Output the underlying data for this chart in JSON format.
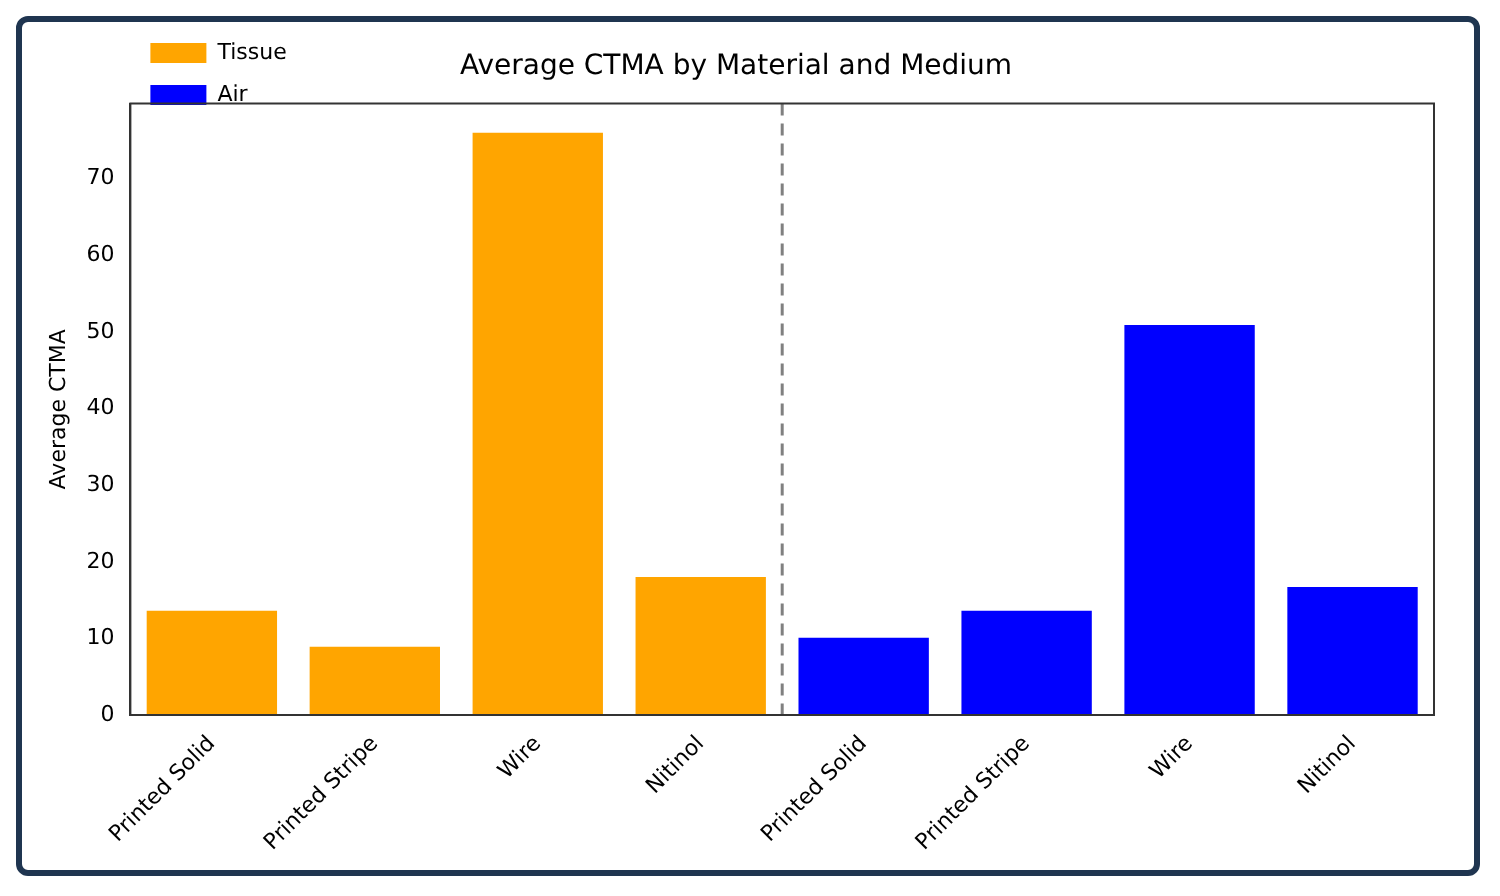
{
  "chart_data": {
    "type": "bar",
    "title": "Average CTMA by Material and Medium",
    "ylabel": "Average CTMA",
    "categories": [
      "Printed Solid",
      "Printed Stripe",
      "Wire",
      "Nitinol",
      "Printed Solid",
      "Printed Stripe",
      "Wire",
      "Nitinol"
    ],
    "series": [
      {
        "name": "Tissue",
        "color": "#ffa500",
        "values": [
          13.6,
          8.9,
          76,
          18.0,
          null,
          null,
          null,
          null
        ]
      },
      {
        "name": "Air",
        "color": "#0000ff",
        "values": [
          null,
          null,
          null,
          null,
          10.1,
          13.6,
          50.9,
          16.7
        ]
      }
    ],
    "ylim": [
      0,
      79.8
    ],
    "yticks": [
      0,
      10,
      20,
      30,
      40,
      50,
      60,
      70
    ],
    "grid": false,
    "legend": "top left"
  }
}
